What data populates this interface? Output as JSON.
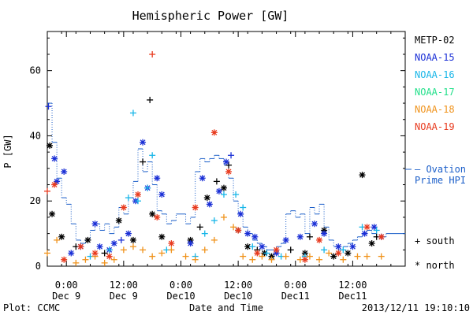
{
  "chart_data": {
    "type": "scatter",
    "title": "Hemispheric Power [GW]",
    "ylabel": "P [GW]",
    "xlabel": "Date and Time",
    "ylim": [
      0,
      72
    ],
    "yticks": [
      0,
      20,
      40,
      60
    ],
    "xlim": [
      "2013-12-08T20:00",
      "2013-12-11T23:00"
    ],
    "xticks": [
      {
        "t": "2013-12-09T00:00",
        "time": "0:00",
        "date": "Dec 9"
      },
      {
        "t": "2013-12-09T12:00",
        "time": "12:00",
        "date": "Dec 9"
      },
      {
        "t": "2013-12-10T00:00",
        "time": "0:00",
        "date": "Dec10"
      },
      {
        "t": "2013-12-10T12:00",
        "time": "12:00",
        "date": "Dec10"
      },
      {
        "t": "2013-12-11T00:00",
        "time": "0:00",
        "date": "Dec11"
      },
      {
        "t": "2013-12-11T12:00",
        "time": "12:00",
        "date": "Dec11"
      }
    ],
    "legend": {
      "placement": "right",
      "satellites": [
        {
          "name": "METP-02",
          "color": "#000000"
        },
        {
          "name": "NOAA-15",
          "color": "#1a2fd6"
        },
        {
          "name": "NOAA-16",
          "color": "#18b6e8"
        },
        {
          "name": "NOAA-17",
          "color": "#22e08a"
        },
        {
          "name": "NOAA-18",
          "color": "#f0931c"
        },
        {
          "name": "NOAA-19",
          "color": "#e83a1e"
        }
      ],
      "model": {
        "label": "— Ovation Prime HPI",
        "color": "#1c5fc9"
      },
      "markers": [
        {
          "symbol": "+",
          "label": "south"
        },
        {
          "symbol": "*",
          "label": "north"
        }
      ]
    },
    "ovation_step": [
      [
        "2013-12-08T20:00",
        50
      ],
      [
        "2013-12-08T21:00",
        38
      ],
      [
        "2013-12-08T22:00",
        27
      ],
      [
        "2013-12-08T23:00",
        21
      ],
      [
        "2013-12-09T00:00",
        19
      ],
      [
        "2013-12-09T01:00",
        13
      ],
      [
        "2013-12-09T02:00",
        8
      ],
      [
        "2013-12-09T03:00",
        7
      ],
      [
        "2013-12-09T04:00",
        8
      ],
      [
        "2013-12-09T05:00",
        11
      ],
      [
        "2013-12-09T06:00",
        13
      ],
      [
        "2013-12-09T07:00",
        11
      ],
      [
        "2013-12-09T08:00",
        13
      ],
      [
        "2013-12-09T09:00",
        10
      ],
      [
        "2013-12-09T10:00",
        12
      ],
      [
        "2013-12-09T11:00",
        18
      ],
      [
        "2013-12-09T12:00",
        16
      ],
      [
        "2013-12-09T13:00",
        21
      ],
      [
        "2013-12-09T14:00",
        26
      ],
      [
        "2013-12-09T15:00",
        36
      ],
      [
        "2013-12-09T16:00",
        29
      ],
      [
        "2013-12-09T17:00",
        32
      ],
      [
        "2013-12-09T18:00",
        25
      ],
      [
        "2013-12-09T19:00",
        17
      ],
      [
        "2013-12-09T20:00",
        16
      ],
      [
        "2013-12-09T21:00",
        13
      ],
      [
        "2013-12-09T22:00",
        14
      ],
      [
        "2013-12-09T23:00",
        16
      ],
      [
        "2013-12-10T00:00",
        16
      ],
      [
        "2013-12-10T01:00",
        13
      ],
      [
        "2013-12-10T02:00",
        15
      ],
      [
        "2013-12-10T03:00",
        29
      ],
      [
        "2013-12-10T04:00",
        33
      ],
      [
        "2013-12-10T05:00",
        32
      ],
      [
        "2013-12-10T06:00",
        33
      ],
      [
        "2013-12-10T07:00",
        34
      ],
      [
        "2013-12-10T08:00",
        33
      ],
      [
        "2013-12-10T09:00",
        31
      ],
      [
        "2013-12-10T10:00",
        27
      ],
      [
        "2013-12-10T11:00",
        20
      ],
      [
        "2013-12-10T12:00",
        16
      ],
      [
        "2013-12-10T13:00",
        12
      ],
      [
        "2013-12-10T14:00",
        10
      ],
      [
        "2013-12-10T15:00",
        8
      ],
      [
        "2013-12-10T16:00",
        7
      ],
      [
        "2013-12-10T17:00",
        6
      ],
      [
        "2013-12-10T18:00",
        5
      ],
      [
        "2013-12-10T19:00",
        5
      ],
      [
        "2013-12-10T20:00",
        6
      ],
      [
        "2013-12-10T21:00",
        7
      ],
      [
        "2013-12-10T22:00",
        16
      ],
      [
        "2013-12-10T23:00",
        17
      ],
      [
        "2013-12-11T00:00",
        15
      ],
      [
        "2013-12-11T01:00",
        16
      ],
      [
        "2013-12-11T02:00",
        10
      ],
      [
        "2013-12-11T03:00",
        18
      ],
      [
        "2013-12-11T04:00",
        16
      ],
      [
        "2013-12-11T05:00",
        19
      ],
      [
        "2013-12-11T06:00",
        12
      ],
      [
        "2013-12-11T07:00",
        8
      ],
      [
        "2013-12-11T08:00",
        6
      ],
      [
        "2013-12-11T09:00",
        5
      ],
      [
        "2013-12-11T10:00",
        6
      ],
      [
        "2013-12-11T11:00",
        7
      ],
      [
        "2013-12-11T12:00",
        8
      ],
      [
        "2013-12-11T13:00",
        9
      ],
      [
        "2013-12-11T14:00",
        10
      ],
      [
        "2013-12-11T15:00",
        11
      ],
      [
        "2013-12-11T16:00",
        10
      ],
      [
        "2013-12-11T17:00",
        9
      ],
      [
        "2013-12-11T18:00",
        9
      ],
      [
        "2013-12-11T19:00",
        10
      ],
      [
        "2013-12-11T23:00",
        10
      ]
    ],
    "series": [
      {
        "name": "METP-02",
        "points": [
          [
            "2013-12-08T20:30",
            37,
            "*"
          ],
          [
            "2013-12-08T21:00",
            16,
            "*"
          ],
          [
            "2013-12-08T23:00",
            9,
            "*"
          ],
          [
            "2013-12-09T02:00",
            6,
            "+"
          ],
          [
            "2013-12-09T04:30",
            8,
            "*"
          ],
          [
            "2013-12-09T08:00",
            4,
            "+"
          ],
          [
            "2013-12-09T11:00",
            14,
            "*"
          ],
          [
            "2013-12-09T14:00",
            8,
            "*"
          ],
          [
            "2013-12-09T16:00",
            32,
            "+"
          ],
          [
            "2013-12-09T17:30",
            51,
            "+"
          ],
          [
            "2013-12-09T18:00",
            16,
            "*"
          ],
          [
            "2013-12-09T20:00",
            9,
            "*"
          ],
          [
            "2013-12-10T02:00",
            8,
            "*"
          ],
          [
            "2013-12-10T04:00",
            12,
            "+"
          ],
          [
            "2013-12-10T05:30",
            21,
            "*"
          ],
          [
            "2013-12-10T07:30",
            26,
            "+"
          ],
          [
            "2013-12-10T09:00",
            24,
            "*"
          ],
          [
            "2013-12-10T10:00",
            31,
            "+"
          ],
          [
            "2013-12-10T12:00",
            11,
            "*"
          ],
          [
            "2013-12-10T14:00",
            6,
            "*"
          ],
          [
            "2013-12-10T16:00",
            5,
            "+"
          ],
          [
            "2013-12-10T17:30",
            4,
            "*"
          ],
          [
            "2013-12-10T19:00",
            3,
            "*"
          ],
          [
            "2013-12-10T23:00",
            5,
            "+"
          ],
          [
            "2013-12-11T02:00",
            4,
            "*"
          ],
          [
            "2013-12-11T03:00",
            9,
            "+"
          ],
          [
            "2013-12-11T06:00",
            11,
            "*"
          ],
          [
            "2013-12-11T08:00",
            3,
            "*"
          ],
          [
            "2013-12-11T11:00",
            4,
            "*"
          ],
          [
            "2013-12-11T14:00",
            28,
            "*"
          ],
          [
            "2013-12-11T16:00",
            7,
            "*"
          ],
          [
            "2013-12-11T17:00",
            9,
            "+"
          ]
        ]
      },
      {
        "name": "NOAA-15",
        "points": [
          [
            "2013-12-08T20:15",
            49,
            "+"
          ],
          [
            "2013-12-08T21:30",
            33,
            "*"
          ],
          [
            "2013-12-08T22:00",
            26,
            "*"
          ],
          [
            "2013-12-08T23:30",
            29,
            "*"
          ],
          [
            "2013-12-09T01:00",
            4,
            "*"
          ],
          [
            "2013-12-09T03:00",
            6,
            "*"
          ],
          [
            "2013-12-09T06:00",
            13,
            "*"
          ],
          [
            "2013-12-09T07:00",
            6,
            "*"
          ],
          [
            "2013-12-09T09:00",
            5,
            "*"
          ],
          [
            "2013-12-09T10:00",
            7,
            "*"
          ],
          [
            "2013-12-09T11:30",
            8,
            "+"
          ],
          [
            "2013-12-09T13:00",
            10,
            "*"
          ],
          [
            "2013-12-09T14:30",
            20,
            "*"
          ],
          [
            "2013-12-09T16:00",
            38,
            "*"
          ],
          [
            "2013-12-09T17:00",
            24,
            "*"
          ],
          [
            "2013-12-09T19:00",
            27,
            "*"
          ],
          [
            "2013-12-09T20:00",
            22,
            "*"
          ],
          [
            "2013-12-10T02:00",
            7,
            "*"
          ],
          [
            "2013-12-10T04:30",
            27,
            "*"
          ],
          [
            "2013-12-10T06:00",
            19,
            "*"
          ],
          [
            "2013-12-10T08:00",
            23,
            "*"
          ],
          [
            "2013-12-10T09:30",
            32,
            "*"
          ],
          [
            "2013-12-10T10:30",
            34,
            "+"
          ],
          [
            "2013-12-10T12:30",
            16,
            "*"
          ],
          [
            "2013-12-10T14:00",
            10,
            "*"
          ],
          [
            "2013-12-10T15:30",
            9,
            "*"
          ],
          [
            "2013-12-10T17:00",
            6,
            "*"
          ],
          [
            "2013-12-10T20:00",
            4,
            "*"
          ],
          [
            "2013-12-10T22:00",
            8,
            "*"
          ],
          [
            "2013-12-11T01:00",
            9,
            "*"
          ],
          [
            "2013-12-11T04:00",
            13,
            "*"
          ],
          [
            "2013-12-11T06:00",
            10,
            "*"
          ],
          [
            "2013-12-11T09:00",
            6,
            "*"
          ],
          [
            "2013-12-11T12:00",
            6,
            "*"
          ],
          [
            "2013-12-11T14:30",
            10,
            "*"
          ],
          [
            "2013-12-11T16:30",
            12,
            "*"
          ],
          [
            "2013-12-11T18:00",
            9,
            "*"
          ]
        ]
      },
      {
        "name": "NOAA-16",
        "points": [
          [
            "2013-12-09T05:00",
            3,
            "+"
          ],
          [
            "2013-12-09T09:00",
            5,
            "+"
          ],
          [
            "2013-12-09T13:00",
            21,
            "+"
          ],
          [
            "2013-12-09T14:00",
            47,
            "+"
          ],
          [
            "2013-12-09T15:00",
            20,
            "+"
          ],
          [
            "2013-12-09T17:00",
            24,
            "+"
          ],
          [
            "2013-12-09T18:00",
            34,
            "+"
          ],
          [
            "2013-12-09T21:00",
            5,
            "+"
          ],
          [
            "2013-12-10T03:00",
            3,
            "+"
          ],
          [
            "2013-12-10T05:00",
            10,
            "+"
          ],
          [
            "2013-12-10T07:00",
            14,
            "+"
          ],
          [
            "2013-12-10T09:00",
            22,
            "+"
          ],
          [
            "2013-12-10T11:30",
            22,
            "+"
          ],
          [
            "2013-12-10T13:00",
            18,
            "+"
          ],
          [
            "2013-12-10T15:00",
            6,
            "+"
          ],
          [
            "2013-12-10T18:00",
            4,
            "+"
          ],
          [
            "2013-12-10T21:00",
            3,
            "+"
          ],
          [
            "2013-12-11T02:00",
            3,
            "+"
          ],
          [
            "2013-12-11T06:00",
            5,
            "+"
          ],
          [
            "2013-12-11T10:00",
            5,
            "+"
          ],
          [
            "2013-12-11T14:00",
            12,
            "+"
          ],
          [
            "2013-12-11T17:00",
            11,
            "+"
          ]
        ]
      },
      {
        "name": "NOAA-18",
        "points": [
          [
            "2013-12-08T20:00",
            4,
            "+"
          ],
          [
            "2013-12-08T22:00",
            8,
            "+"
          ],
          [
            "2013-12-09T02:00",
            1,
            "+"
          ],
          [
            "2013-12-09T04:00",
            2,
            "+"
          ],
          [
            "2013-12-09T06:00",
            3,
            "+"
          ],
          [
            "2013-12-09T08:00",
            1,
            "+"
          ],
          [
            "2013-12-09T10:00",
            2,
            "+"
          ],
          [
            "2013-12-09T12:00",
            5,
            "+"
          ],
          [
            "2013-12-09T14:00",
            6,
            "+"
          ],
          [
            "2013-12-09T16:00",
            5,
            "+"
          ],
          [
            "2013-12-09T18:00",
            3,
            "+"
          ],
          [
            "2013-12-09T20:00",
            4,
            "+"
          ],
          [
            "2013-12-09T22:00",
            5,
            "+"
          ],
          [
            "2013-12-10T01:00",
            3,
            "+"
          ],
          [
            "2013-12-10T03:00",
            2,
            "+"
          ],
          [
            "2013-12-10T05:00",
            5,
            "+"
          ],
          [
            "2013-12-10T07:00",
            8,
            "+"
          ],
          [
            "2013-12-10T09:00",
            15,
            "+"
          ],
          [
            "2013-12-10T11:00",
            12,
            "+"
          ],
          [
            "2013-12-10T13:00",
            3,
            "+"
          ],
          [
            "2013-12-10T15:00",
            2,
            "+"
          ],
          [
            "2013-12-10T17:00",
            3,
            "+"
          ],
          [
            "2013-12-10T19:00",
            2,
            "+"
          ],
          [
            "2013-12-10T22:00",
            3,
            "+"
          ],
          [
            "2013-12-11T01:00",
            2,
            "+"
          ],
          [
            "2013-12-11T03:00",
            3,
            "+"
          ],
          [
            "2013-12-11T05:00",
            2,
            "+"
          ],
          [
            "2013-12-11T07:00",
            4,
            "+"
          ],
          [
            "2013-12-11T10:00",
            2,
            "+"
          ],
          [
            "2013-12-11T13:00",
            3,
            "+"
          ],
          [
            "2013-12-11T15:00",
            3,
            "+"
          ],
          [
            "2013-12-11T18:00",
            3,
            "+"
          ]
        ]
      },
      {
        "name": "NOAA-19",
        "points": [
          [
            "2013-12-08T20:00",
            23,
            "+"
          ],
          [
            "2013-12-08T21:30",
            25,
            "*"
          ],
          [
            "2013-12-08T23:30",
            2,
            "*"
          ],
          [
            "2013-12-09T03:00",
            6,
            "*"
          ],
          [
            "2013-12-09T06:00",
            4,
            "*"
          ],
          [
            "2013-12-09T09:00",
            3,
            "*"
          ],
          [
            "2013-12-09T12:00",
            18,
            "*"
          ],
          [
            "2013-12-09T15:00",
            22,
            "*"
          ],
          [
            "2013-12-09T18:00",
            65,
            "+"
          ],
          [
            "2013-12-09T19:00",
            15,
            "*"
          ],
          [
            "2013-12-09T22:00",
            7,
            "*"
          ],
          [
            "2013-12-10T03:00",
            18,
            "*"
          ],
          [
            "2013-12-10T07:00",
            41,
            "*"
          ],
          [
            "2013-12-10T10:00",
            29,
            "*"
          ],
          [
            "2013-12-10T12:00",
            11,
            "*"
          ],
          [
            "2013-12-10T16:00",
            4,
            "*"
          ],
          [
            "2013-12-10T20:00",
            5,
            "*"
          ],
          [
            "2013-12-11T02:00",
            2,
            "*"
          ],
          [
            "2013-12-11T05:00",
            8,
            "*"
          ],
          [
            "2013-12-11T09:00",
            4,
            "*"
          ],
          [
            "2013-12-11T15:00",
            12,
            "*"
          ],
          [
            "2013-12-11T18:00",
            9,
            "*"
          ]
        ]
      }
    ]
  },
  "footer": {
    "plot_credit": "Plot: CCMC",
    "timestamp": "2013/12/11 19:10:10"
  }
}
